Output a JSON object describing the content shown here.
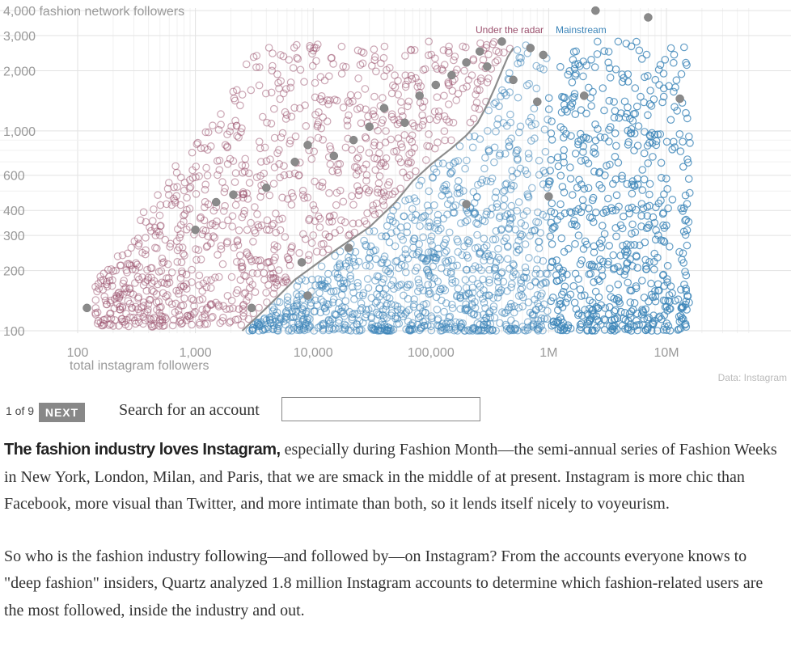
{
  "chart_data": {
    "type": "scatter",
    "x_scale": "log",
    "y_scale": "log",
    "xlim": [
      60,
      6000000
    ],
    "ylim": [
      90,
      4300
    ],
    "x_ticks": [
      {
        "value": 100,
        "label": "100"
      },
      {
        "value": 1000,
        "label": "1,000"
      },
      {
        "value": 10000,
        "label": "10,000"
      },
      {
        "value": 100000,
        "label": "100,000"
      },
      {
        "value": 1000000,
        "label": "1M"
      },
      {
        "value": 10000000,
        "label": "10M"
      }
    ],
    "y_ticks": [
      {
        "value": 4000,
        "label": "4,000 fashion network followers"
      },
      {
        "value": 3000,
        "label": "3,000"
      },
      {
        "value": 2000,
        "label": "2,000"
      },
      {
        "value": 1000,
        "label": "1,000"
      },
      {
        "value": 600,
        "label": "600"
      },
      {
        "value": 400,
        "label": "400"
      },
      {
        "value": 300,
        "label": "300"
      },
      {
        "value": 200,
        "label": "200"
      },
      {
        "value": 100,
        "label": "100"
      }
    ],
    "xlabel": "total instagram followers",
    "ylabel": "",
    "grid": true,
    "source": "Data: Instagram",
    "series": [
      {
        "name": "Under the radar",
        "color": "#9a4f6c"
      },
      {
        "name": "Mainstream",
        "color": "#3b84b8"
      }
    ],
    "divider_line": [
      [
        2500,
        100
      ],
      [
        4000,
        130
      ],
      [
        7000,
        180
      ],
      [
        15000,
        250
      ],
      [
        30000,
        330
      ],
      [
        50000,
        440
      ],
      [
        70000,
        560
      ],
      [
        100000,
        680
      ],
      [
        150000,
        820
      ],
      [
        200000,
        950
      ],
      [
        250000,
        1100
      ],
      [
        300000,
        1350
      ],
      [
        350000,
        1650
      ],
      [
        400000,
        2000
      ],
      [
        450000,
        2350
      ],
      [
        500000,
        2600
      ]
    ],
    "highlighted_accounts": [
      [
        1000,
        320
      ],
      [
        1500,
        440
      ],
      [
        2100,
        480
      ],
      [
        120,
        130
      ],
      [
        4000,
        520
      ],
      [
        7000,
        700
      ],
      [
        9000,
        850
      ],
      [
        15000,
        750
      ],
      [
        22000,
        900
      ],
      [
        30000,
        1050
      ],
      [
        40000,
        1300
      ],
      [
        60000,
        1100
      ],
      [
        80000,
        1500
      ],
      [
        110000,
        1700
      ],
      [
        150000,
        1900
      ],
      [
        200000,
        2200
      ],
      [
        300000,
        2100
      ],
      [
        400000,
        2800
      ],
      [
        500000,
        1800
      ],
      [
        700000,
        2600
      ],
      [
        800000,
        1400
      ],
      [
        900000,
        2400
      ],
      [
        2500000,
        4000
      ],
      [
        7000000,
        3700
      ],
      [
        13000000,
        1450
      ],
      [
        2000000,
        1500
      ],
      [
        1000000,
        470
      ],
      [
        200000,
        430
      ],
      [
        20000,
        260
      ],
      [
        8000,
        220
      ],
      [
        9000,
        150
      ],
      [
        260000,
        2500
      ],
      [
        3000,
        130
      ]
    ]
  },
  "controls": {
    "pager": "1 of 9",
    "next_label": "NEXT",
    "search_label": "Search for an account",
    "search_placeholder": ""
  },
  "article": {
    "p1_lede": "The fashion industry loves Instagram,",
    "p1_rest": " especially during Fashion Month—the semi-annual series of Fashion Weeks in New York, London, Milan, and Paris, that we are smack in the middle of at present. Instagram is more chic than Facebook, more visual than Twitter, and more intimate than both, so it lends itself nicely to voyeurism.",
    "p2": "So who is the fashion industry following—and followed by—on Instagram? From the accounts everyone knows to \"deep fashion\" insiders, Quartz analyzed 1.8 million Instagram accounts to determine which fashion-related users are the most followed, inside the industry and out."
  }
}
